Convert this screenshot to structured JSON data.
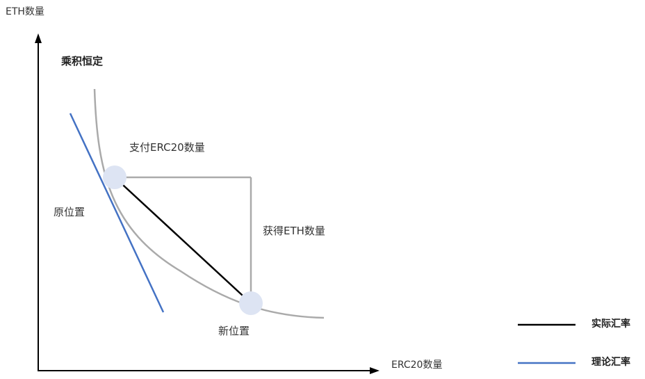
{
  "axes": {
    "y_label": "ETH数量",
    "x_label": "ERC20数量"
  },
  "title": "乘积恒定",
  "annotations": {
    "pay": "支付ERC20数量",
    "receive": "获得ETH数量",
    "original_position": "原位置",
    "new_position": "新位置"
  },
  "legend": {
    "items": [
      {
        "label": "实际汇率",
        "color": "#000000"
      },
      {
        "label": "理论汇率",
        "color": "#4472c4"
      }
    ]
  },
  "colors": {
    "curve": "#aaaaaa",
    "axis": "#000000",
    "actual_rate": "#000000",
    "theoretical_rate": "#4472c4",
    "point_fill": "#dde4f3"
  }
}
